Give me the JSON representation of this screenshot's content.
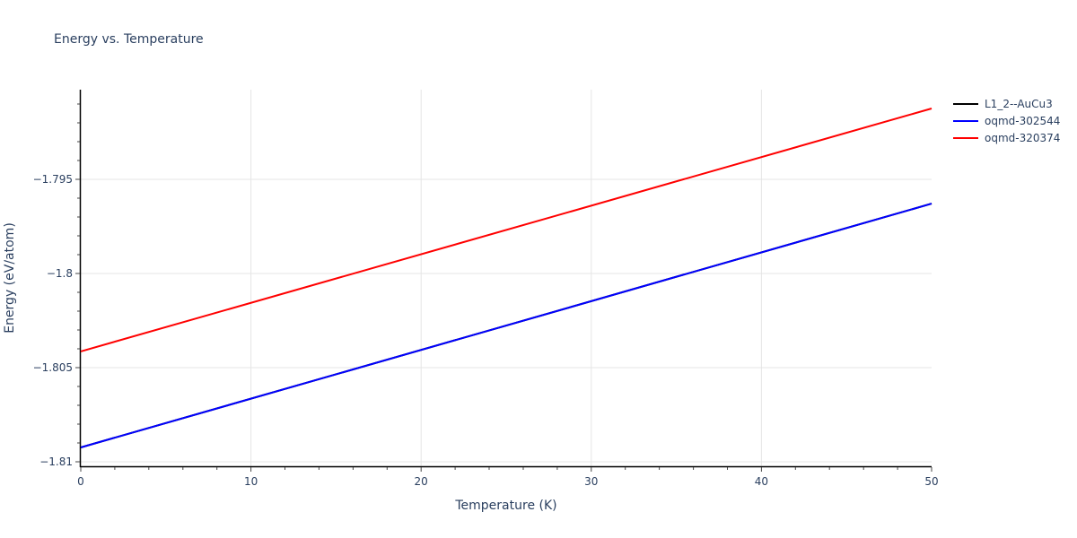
{
  "chart": {
    "title": "Energy vs. Temperature",
    "xlabel": "Temperature (K)",
    "ylabel": "Energy (eV/atom)"
  },
  "legend": {
    "items": [
      {
        "label": "L1_2--AuCu3",
        "color": "#000000"
      },
      {
        "label": "oqmd-302544",
        "color": "#0000ff"
      },
      {
        "label": "oqmd-320374",
        "color": "#ff0000"
      }
    ]
  },
  "axes": {
    "x_ticks": [
      "0",
      "10",
      "20",
      "30",
      "40",
      "50"
    ],
    "y_ticks": [
      "−1.795",
      "−1.8",
      "−1.805",
      "−1.81"
    ]
  },
  "chart_data": {
    "type": "line",
    "title": "Energy vs. Temperature",
    "xlabel": "Temperature (K)",
    "ylabel": "Energy (eV/atom)",
    "xlim": [
      0,
      50
    ],
    "ylim": [
      -1.8104,
      -1.7895
    ],
    "grid": true,
    "legend_position": "right",
    "x": [
      0,
      50
    ],
    "series": [
      {
        "name": "L1_2--AuCu3",
        "color": "#000000",
        "x": [
          0,
          50
        ],
        "values": [
          -1.80924,
          -1.79629
        ]
      },
      {
        "name": "oqmd-302544",
        "color": "#0000ff",
        "x": [
          0,
          50
        ],
        "values": [
          -1.80924,
          -1.79629
        ]
      },
      {
        "name": "oqmd-320374",
        "color": "#ff0000",
        "x": [
          0,
          50
        ],
        "values": [
          -1.80414,
          -1.79124
        ]
      }
    ]
  }
}
